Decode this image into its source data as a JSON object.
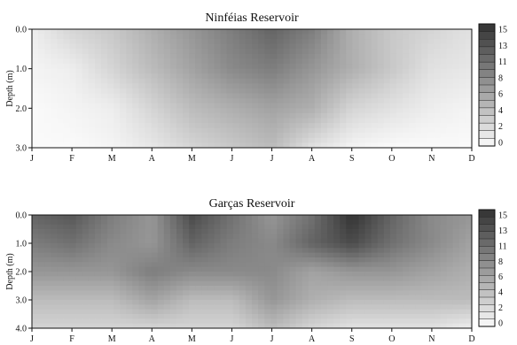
{
  "chart_data": [
    {
      "type": "heatmap",
      "title": "Ninféias Reservoir",
      "ylabel": "Depth (m)",
      "x_ticks": [
        "J",
        "F",
        "M",
        "A",
        "M",
        "J",
        "J",
        "A",
        "S",
        "O",
        "N",
        "D"
      ],
      "y_ticks": [
        "0.0",
        "1.0",
        "2.0",
        "3.0"
      ],
      "ylim": [
        0,
        3
      ],
      "y_inverted": true,
      "colorbar_ticks": [
        "15",
        "13",
        "11",
        "8",
        "6",
        "4",
        "2",
        "0"
      ],
      "colorbar_range": [
        0,
        16
      ],
      "grid": [
        [
          1,
          3,
          4,
          6,
          8,
          10,
          12,
          10,
          6,
          4,
          3,
          2
        ],
        [
          0.5,
          1,
          3,
          5,
          7,
          9,
          10,
          8,
          6,
          4,
          2,
          1.5
        ],
        [
          0,
          0.5,
          1,
          3,
          5,
          6,
          7,
          6,
          3,
          2,
          1,
          0.5
        ],
        [
          0,
          0,
          0.5,
          1.5,
          3,
          4,
          5,
          2,
          0.5,
          0,
          0,
          0
        ]
      ]
    },
    {
      "type": "heatmap",
      "title": "Garças Reservoir",
      "ylabel": "Depth (m)",
      "x_ticks": [
        "J",
        "F",
        "M",
        "A",
        "M",
        "J",
        "J",
        "A",
        "S",
        "O",
        "N",
        "D"
      ],
      "y_ticks": [
        "0.0",
        "1.0",
        "2.0",
        "3.0",
        "4.0"
      ],
      "ylim": [
        0,
        4
      ],
      "y_inverted": true,
      "colorbar_ticks": [
        "15",
        "13",
        "11",
        "8",
        "6",
        "4",
        "2",
        "0"
      ],
      "colorbar_range": [
        0,
        16
      ],
      "grid": [
        [
          12,
          13,
          10,
          8,
          14,
          11,
          8,
          11,
          16,
          12,
          9,
          8
        ],
        [
          10,
          11,
          9,
          8,
          12,
          10,
          9,
          12,
          14,
          11,
          9,
          7
        ],
        [
          8,
          8,
          8,
          10,
          9,
          9,
          9,
          7,
          8,
          8,
          7,
          6
        ],
        [
          5,
          5,
          5,
          7,
          5,
          5,
          8,
          6,
          5,
          5,
          5,
          5
        ],
        [
          3,
          3,
          3,
          3,
          3,
          3,
          5,
          3,
          2,
          2,
          2,
          1
        ]
      ]
    }
  ]
}
